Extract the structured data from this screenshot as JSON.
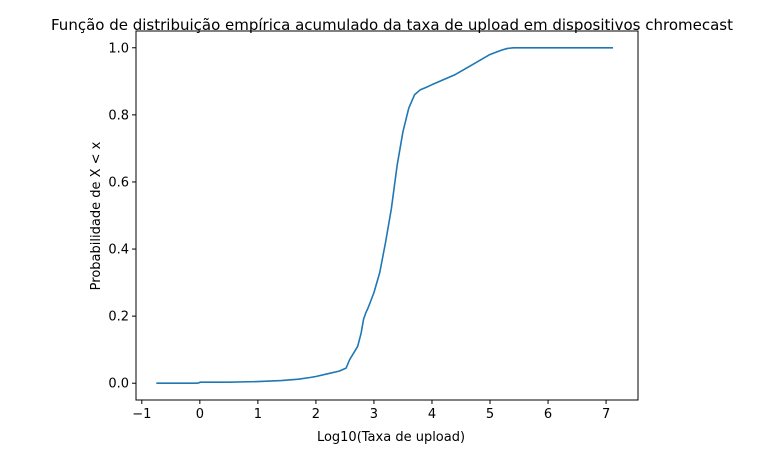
{
  "chart_data": {
    "type": "line",
    "title": "Função de distribuição empírica acumulado da taxa de upload em dispositivos chromecast",
    "xlabel": "Log10(Taxa de upload)",
    "ylabel": "Probabilidade de X < x",
    "xlim": [
      -1.1,
      7.55
    ],
    "ylim": [
      -0.05,
      1.05
    ],
    "xticks": [
      -1,
      0,
      1,
      2,
      3,
      4,
      5,
      6,
      7
    ],
    "yticks": [
      0.0,
      0.2,
      0.4,
      0.6,
      0.8,
      1.0
    ],
    "xtick_labels": [
      "−1",
      "0",
      "1",
      "2",
      "3",
      "4",
      "5",
      "6",
      "7"
    ],
    "ytick_labels": [
      "0.0",
      "0.2",
      "0.4",
      "0.6",
      "0.8",
      "1.0"
    ],
    "grid": false,
    "series": [
      {
        "color": "#1f77b4",
        "x": [
          -0.75,
          -0.4,
          -0.05,
          0.0,
          0.0,
          0.5,
          1.0,
          1.4,
          1.7,
          1.9,
          2.0,
          2.2,
          2.4,
          2.52,
          2.58,
          2.65,
          2.72,
          2.78,
          2.82,
          2.86,
          2.9,
          3.0,
          3.1,
          3.2,
          3.3,
          3.4,
          3.5,
          3.6,
          3.7,
          3.8,
          3.9,
          4.0,
          4.2,
          4.4,
          4.6,
          4.8,
          5.0,
          5.2,
          5.3,
          5.4,
          5.6,
          6.0,
          6.5,
          7.12
        ],
        "y": [
          0.0,
          0.0,
          0.0,
          0.002,
          0.003,
          0.003,
          0.005,
          0.008,
          0.012,
          0.017,
          0.02,
          0.028,
          0.036,
          0.045,
          0.07,
          0.09,
          0.11,
          0.15,
          0.19,
          0.21,
          0.225,
          0.27,
          0.33,
          0.42,
          0.52,
          0.65,
          0.75,
          0.82,
          0.86,
          0.875,
          0.882,
          0.89,
          0.905,
          0.92,
          0.94,
          0.96,
          0.98,
          0.993,
          0.998,
          1.0,
          1.0,
          1.0,
          1.0,
          1.0
        ]
      }
    ]
  }
}
